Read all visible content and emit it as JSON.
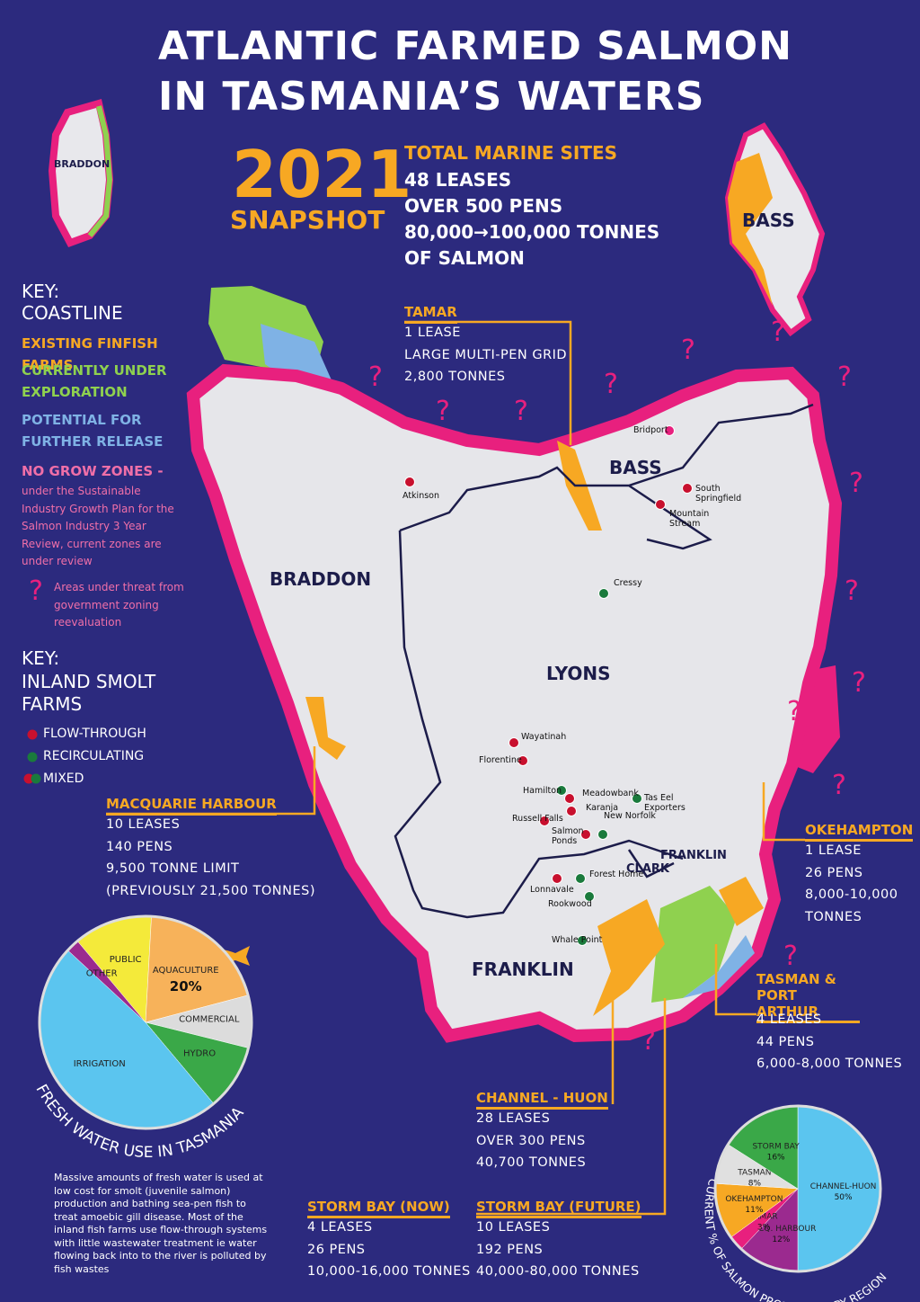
{
  "title": [
    "ATLANTIC FARMED SALMON",
    "IN TASMANIA’S WATERS"
  ],
  "snapshot": {
    "year": "2021",
    "label": "SNAPSHOT"
  },
  "summary": {
    "heading": "TOTAL MARINE SITES",
    "lines": [
      "48 LEASES",
      "OVER 500 PENS",
      "80,000→100,000 TONNES",
      "OF SALMON"
    ]
  },
  "key_coastline": {
    "heading": "KEY:",
    "subheading": "COASTLINE",
    "items": [
      {
        "label": "EXISTING FINFISH FARMS",
        "color": "#f7a823"
      },
      {
        "label": "CURRENTLY UNDER EXPLORATION",
        "color": "#8fd14f"
      },
      {
        "label": "POTENTIAL FOR FURTHER RELEASE",
        "color": "#7fb2e5"
      },
      {
        "label": "NO GROW ZONES -",
        "color": "#f06fa8"
      }
    ],
    "note": "under the Sustainable Industry Growth Plan for the Salmon Industry 3 Year Review, current zones are under review",
    "threat_symbol": "?",
    "threat_label": "Areas under threat from government zoning reevaluation"
  },
  "key_inland": {
    "heading": "KEY:",
    "subheading": "INLAND SMOLT FARMS",
    "items": [
      {
        "label": "FLOW-THROUGH",
        "color": "#c8102e"
      },
      {
        "label": "RECIRCULATING",
        "color": "#1a7a3c"
      },
      {
        "label": "MIXED",
        "color": "#c8102e"
      }
    ]
  },
  "regions": [
    "BRADDON",
    "BASS",
    "LYONS",
    "FRANKLIN",
    "CLARK"
  ],
  "callouts": [
    {
      "title": "TAMAR",
      "lines": [
        "1 LEASE",
        "LARGE MULTI-PEN GRID",
        "2,800 TONNES"
      ]
    },
    {
      "title": "MACQUARIE HARBOUR",
      "lines": [
        "10 LEASES",
        "140 PENS",
        "9,500 TONNE LIMIT",
        "(PREVIOUSLY 21,500 TONNES)"
      ]
    },
    {
      "title": "OKEHAMPTON",
      "lines": [
        "1 LEASE",
        "26 PENS",
        "8,000-10,000",
        "TONNES"
      ]
    },
    {
      "title": "TASMAN & PORT ARTHUR",
      "lines": [
        "4 LEASES",
        "44 PENS",
        "6,000-8,000 TONNES"
      ]
    },
    {
      "title": "CHANNEL - HUON",
      "lines": [
        "28 LEASES",
        "OVER 300 PENS",
        "40,700 TONNES"
      ]
    },
    {
      "title": "STORM BAY (NOW)",
      "lines": [
        "4 LEASES",
        "26 PENS",
        "10,000-16,000 TONNES"
      ]
    },
    {
      "title": "STORM BAY (FUTURE)",
      "lines": [
        "10 LEASES",
        "192 PENS",
        "40,000-80,000 TONNES"
      ]
    }
  ],
  "farms": [
    {
      "name": "Atkinson",
      "color": "#c8102e"
    },
    {
      "name": "Bridport",
      "color": "#e8207e"
    },
    {
      "name": "South Springfield",
      "color": "#c8102e"
    },
    {
      "name": "Mountain Stream",
      "color": "#c8102e"
    },
    {
      "name": "Cressy",
      "color": "#1a7a3c"
    },
    {
      "name": "Wayatinah",
      "color": "#c8102e"
    },
    {
      "name": "Florentine",
      "color": "#c8102e"
    },
    {
      "name": "Hamilton",
      "color": "#1a7a3c"
    },
    {
      "name": "Meadowbank",
      "color": "#c8102e"
    },
    {
      "name": "Tas Eel Exporters",
      "color": "#1a7a3c"
    },
    {
      "name": "Karanja",
      "color": "#c8102e"
    },
    {
      "name": "New Norfolk",
      "color": "#1a7a3c"
    },
    {
      "name": "Russell Falls",
      "color": "#c8102e"
    },
    {
      "name": "Salmon Ponds",
      "color": "#c8102e"
    },
    {
      "name": "Lonnavale",
      "color": "#c8102e"
    },
    {
      "name": "Forest Home",
      "color": "#1a7a3c"
    },
    {
      "name": "Rookwood",
      "color": "#1a7a3c"
    },
    {
      "name": "Whale Point",
      "color": "#1a7a3c"
    }
  ],
  "chart_data": [
    {
      "type": "pie",
      "title": "FRESH WATER USE IN TASMANIA",
      "categories": [
        "PUBLIC",
        "AQUACULTURE",
        "COMMERCIAL",
        "HYDRO",
        "IRRIGATION",
        "OTHER"
      ],
      "values": [
        12,
        20,
        8,
        10,
        48,
        2
      ],
      "value_labels": [
        null,
        "20%",
        null,
        null,
        null,
        null
      ],
      "colors": [
        "#f4ea3a",
        "#f7b25a",
        "#dcdcdc",
        "#3aa848",
        "#5bc5ef",
        "#9b2a8f"
      ]
    },
    {
      "type": "pie",
      "title": "CURRENT % OF SALMON PRODUCTION BY REGION",
      "categories": [
        "CHANNEL-HUON",
        "MACQ. HARBOUR",
        "TAMAR",
        "OKEHAMPTON",
        "TASMAN",
        "STORM BAY"
      ],
      "values": [
        50,
        12,
        3,
        11,
        8,
        16
      ],
      "value_labels": [
        "50%",
        "12%",
        "3%",
        "11%",
        "8%",
        "16%"
      ],
      "colors": [
        "#5bc5ef",
        "#9b2a8f",
        "#e8207e",
        "#f7a823",
        "#e0e0e0",
        "#3aa848"
      ]
    }
  ],
  "footnote": "Massive amounts of fresh water is used at low cost for smolt (juvenile salmon) production and bathing sea-pen fish to treat amoebic gill disease. Most of the inland fish farms use flow-through systems with little wastewater treatment ie water flowing back into to the river is polluted by fish wastes"
}
